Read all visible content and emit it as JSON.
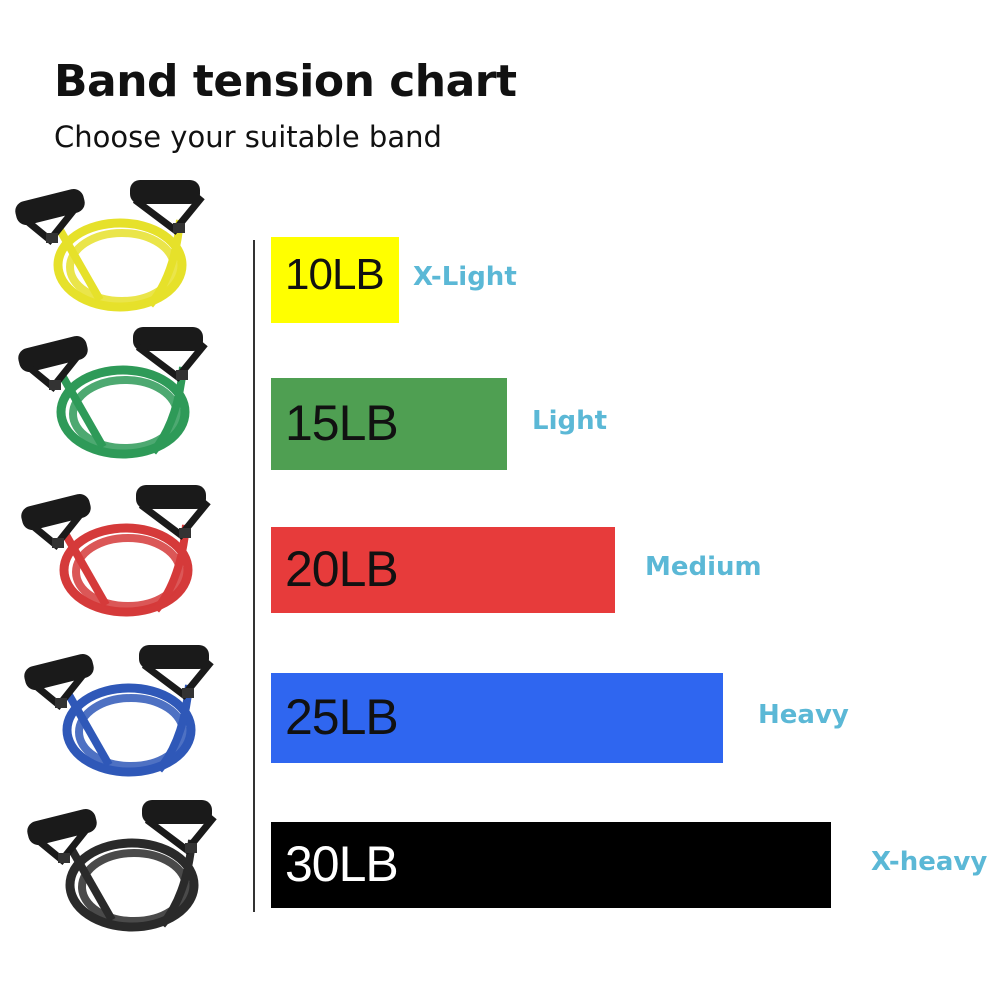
{
  "chart_data": {
    "type": "bar",
    "orientation": "horizontal",
    "title": "Band tension chart",
    "subtitle": "Choose your suitable band",
    "categories": [
      "10LB",
      "15LB",
      "20LB",
      "25LB",
      "30LB"
    ],
    "values": [
      10,
      15,
      20,
      25,
      30
    ],
    "unit": "LB",
    "levels": [
      "X-Light",
      "Light",
      "Medium",
      "Heavy",
      "X-heavy"
    ],
    "colors": [
      "#ffff00",
      "#4f9f52",
      "#e73b3b",
      "#2f66f0",
      "#000000"
    ],
    "label_colors": [
      "#111111",
      "#111111",
      "#111111",
      "#111111",
      "#ffffff"
    ],
    "band_colors": [
      "#e6e12a",
      "#2e9a58",
      "#d53a3a",
      "#2f58b8",
      "#2a2a2a"
    ],
    "level_color": "#5bb8d6",
    "grid": false,
    "legend": "none"
  }
}
